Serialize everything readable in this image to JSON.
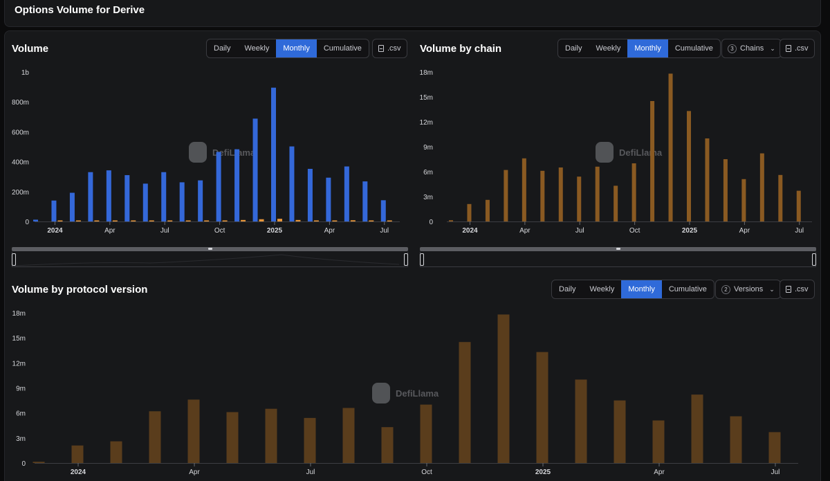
{
  "page": {
    "title": "Options Volume for Derive"
  },
  "toggle_labels": [
    "Daily",
    "Weekly",
    "Monthly",
    "Cumulative"
  ],
  "active_toggle": "Monthly",
  "csv_label": ".csv",
  "watermark": "DefiLlama",
  "colors": {
    "blue": "#3468d9",
    "orange_small": "#e6953a",
    "brown": "#8a5a22",
    "brown_dark": "#5a3d1c",
    "accent": "#2f6ad9"
  },
  "icons": [
    "file-icon",
    "chevron-down-icon",
    "llama-logo-icon"
  ],
  "volume_card": {
    "title": "Volume",
    "chart_data": {
      "type": "bar",
      "categories": [
        "2023-12",
        "2024-01",
        "2024-02",
        "2024-03",
        "2024-04",
        "2024-05",
        "2024-06",
        "2024-07",
        "2024-08",
        "2024-09",
        "2024-10",
        "2024-11",
        "2024-12",
        "2025-01",
        "2025-02",
        "2025-03",
        "2025-04",
        "2025-05",
        "2025-06",
        "2025-07"
      ],
      "x_tick_labels": [
        "2024",
        "Apr",
        "Jul",
        "Oct",
        "2025",
        "Apr",
        "Jul"
      ],
      "y_tick_labels": [
        "0",
        "200m",
        "400m",
        "600m",
        "800m",
        "1b"
      ],
      "ylim": [
        0,
        1000000000
      ],
      "series": [
        {
          "values": [
            12000000,
            140000000,
            192000000,
            330000000,
            342000000,
            310000000,
            253000000,
            330000000,
            262000000,
            275000000,
            465000000,
            483000000,
            688000000,
            895000000,
            502000000,
            352000000,
            293000000,
            368000000,
            268000000,
            142000000
          ],
          "color": "#3468d9"
        },
        {
          "values": [
            0,
            2000000,
            3000000,
            5000000,
            6000000,
            5000000,
            4000000,
            5000000,
            4000000,
            4000000,
            7000000,
            10000000,
            15000000,
            18000000,
            10000000,
            7000000,
            5000000,
            8000000,
            5000000,
            3000000
          ],
          "color": "#e6953a"
        }
      ]
    }
  },
  "chain_card": {
    "title": "Volume by chain",
    "chains_count": "3",
    "chains_label": "Chains",
    "chart_data": {
      "type": "bar",
      "categories": [
        "2023-12",
        "2024-01",
        "2024-02",
        "2024-03",
        "2024-04",
        "2024-05",
        "2024-06",
        "2024-07",
        "2024-08",
        "2024-09",
        "2024-10",
        "2024-11",
        "2024-12",
        "2025-01",
        "2025-02",
        "2025-03",
        "2025-04",
        "2025-05",
        "2025-06",
        "2025-07"
      ],
      "x_tick_labels": [
        "2024",
        "Apr",
        "Jul",
        "Oct",
        "2025",
        "Apr",
        "Jul"
      ],
      "y_tick_labels": [
        "0",
        "3m",
        "6m",
        "9m",
        "12m",
        "15m",
        "18m"
      ],
      "ylim": [
        0,
        18000000
      ],
      "series": [
        {
          "values": [
            150000,
            2100000,
            2600000,
            6200000,
            7600000,
            6100000,
            6500000,
            5400000,
            6600000,
            4300000,
            7000000,
            14500000,
            17800000,
            13300000,
            10000000,
            7500000,
            5100000,
            8200000,
            5600000,
            3700000
          ],
          "color": "#8a5a22"
        }
      ]
    }
  },
  "version_card": {
    "title": "Volume by protocol version",
    "versions_count": "2",
    "versions_label": "Versions",
    "chart_data": {
      "type": "bar",
      "categories": [
        "2023-12",
        "2024-01",
        "2024-02",
        "2024-03",
        "2024-04",
        "2024-05",
        "2024-06",
        "2024-07",
        "2024-08",
        "2024-09",
        "2024-10",
        "2024-11",
        "2024-12",
        "2025-01",
        "2025-02",
        "2025-03",
        "2025-04",
        "2025-05",
        "2025-06",
        "2025-07"
      ],
      "x_tick_labels": [
        "2024",
        "Apr",
        "Jul",
        "Oct",
        "2025",
        "Apr",
        "Jul"
      ],
      "y_tick_labels": [
        "0",
        "3m",
        "6m",
        "9m",
        "12m",
        "15m",
        "18m"
      ],
      "ylim": [
        0,
        18000000
      ],
      "series": [
        {
          "values": [
            150000,
            2100000,
            2600000,
            6200000,
            7600000,
            6100000,
            6500000,
            5400000,
            6600000,
            4300000,
            7000000,
            14500000,
            17800000,
            13300000,
            10000000,
            7500000,
            5100000,
            8200000,
            5600000,
            3700000
          ],
          "color": "#5a3d1c"
        }
      ]
    }
  }
}
